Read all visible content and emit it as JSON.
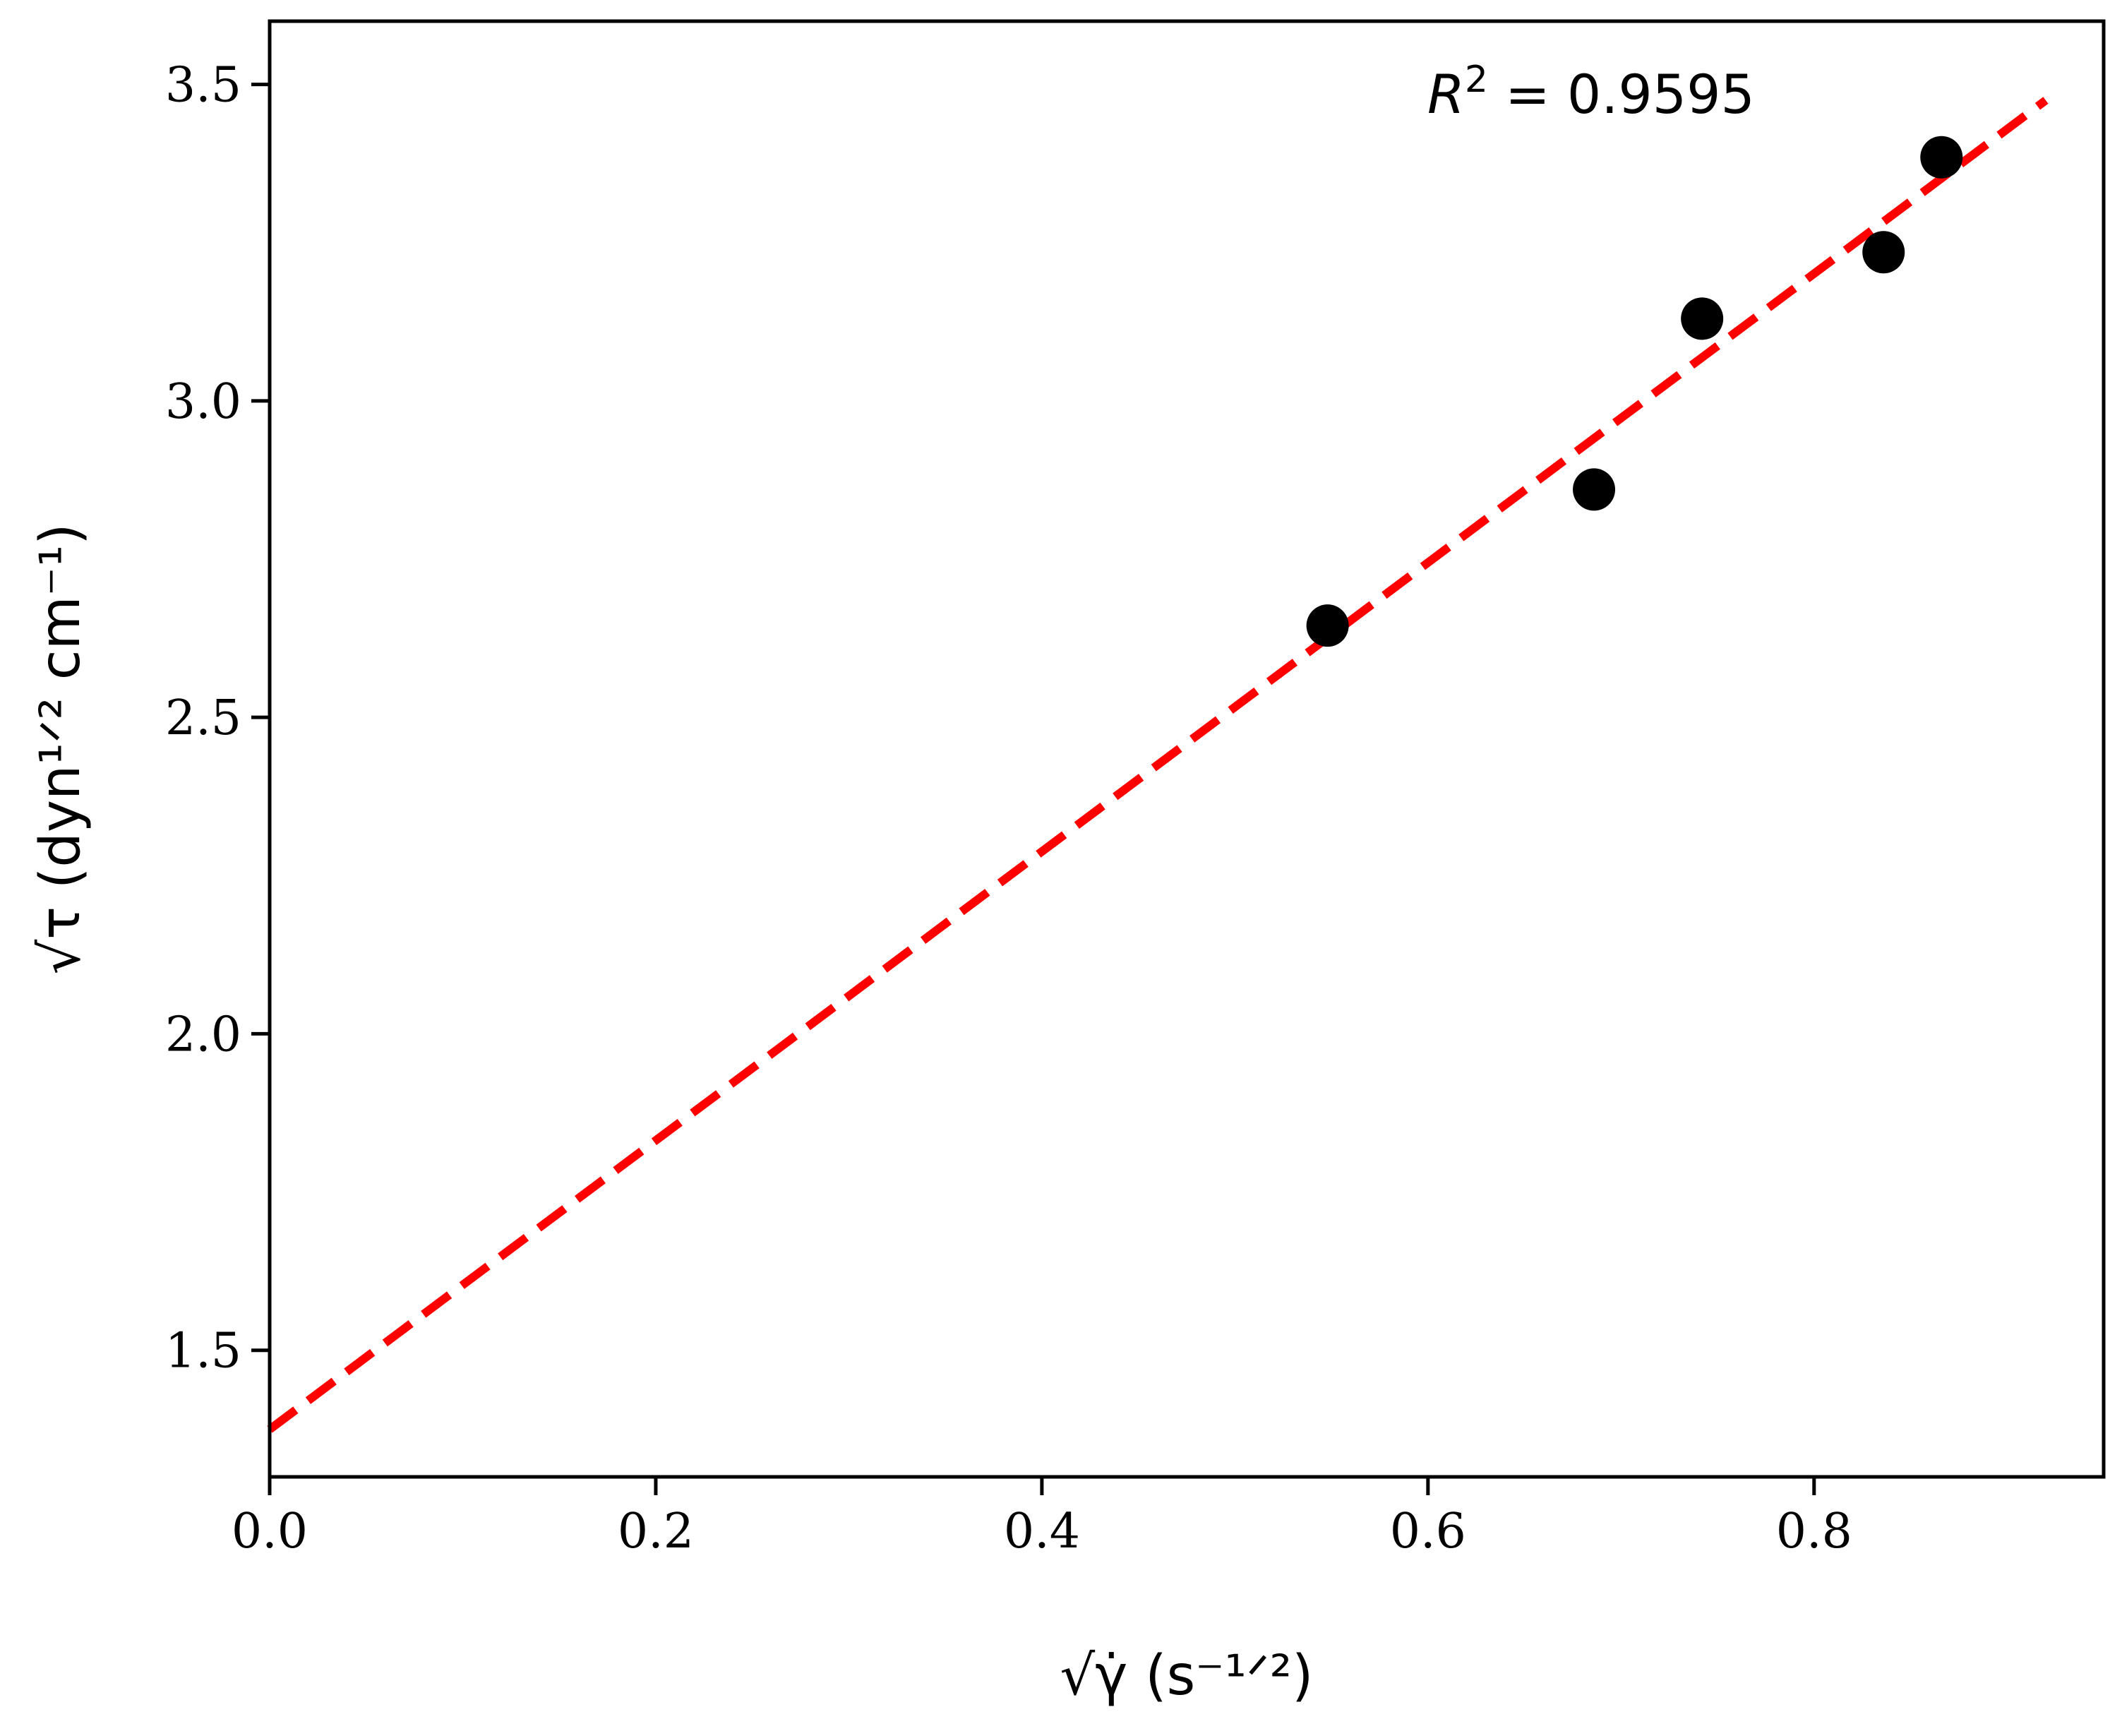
{
  "chart_data": {
    "type": "scatter",
    "xlabel": "√γ̇ (s⁻¹ᐟ²)",
    "ylabel": "√τ (dyn¹ᐟ² cm⁻¹)",
    "xlim": [
      0.0,
      0.95
    ],
    "ylim": [
      1.3,
      3.6
    ],
    "xticks": [
      0.0,
      0.2,
      0.4,
      0.6,
      0.8
    ],
    "xtick_labels": [
      "0.0",
      "0.2",
      "0.4",
      "0.6",
      "0.8"
    ],
    "yticks": [
      1.5,
      2.0,
      2.5,
      3.0,
      3.5
    ],
    "ytick_labels": [
      "1.5",
      "2.0",
      "2.5",
      "3.0",
      "3.5"
    ],
    "grid": false,
    "series": [
      {
        "kind": "points",
        "color": "#000000",
        "x": [
          0.548,
          0.686,
          0.742,
          0.836,
          0.866
        ],
        "y": [
          2.645,
          2.86,
          3.13,
          3.235,
          3.385
        ]
      },
      {
        "kind": "fit-line",
        "style": "dashed",
        "color": "#ff0000",
        "x": [
          0.0,
          0.92
        ],
        "y": [
          1.375,
          3.475
        ]
      }
    ],
    "annotation": {
      "text_base": "R",
      "text_sup": "2",
      "text_rest": " = 0.9595"
    }
  }
}
